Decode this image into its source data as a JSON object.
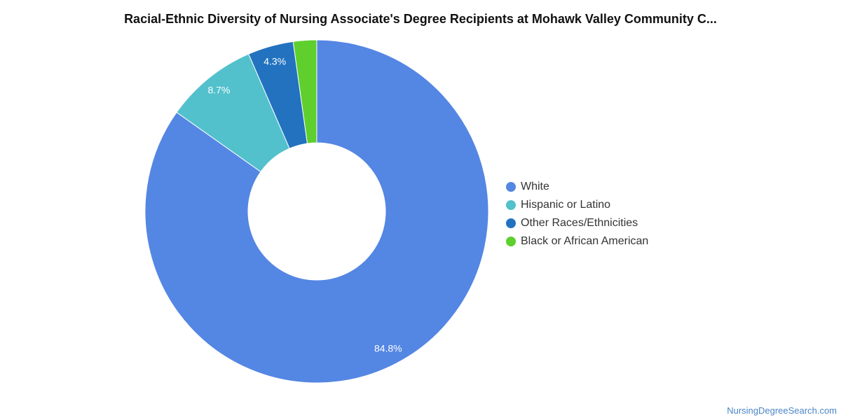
{
  "chart_data": {
    "type": "pie",
    "title": "Racial-Ethnic Diversity of Nursing Associate's Degree Recipients at Mohawk Valley Community C...",
    "donut": true,
    "categories": [
      "White",
      "Hispanic or Latino",
      "Other Races/Ethnicities",
      "Black or African American"
    ],
    "values": [
      84.8,
      8.7,
      4.3,
      2.2
    ],
    "data_labels": [
      "84.8%",
      "8.7%",
      "4.3%",
      ""
    ],
    "colors": [
      "#5486e3",
      "#52c1cc",
      "#2272c0",
      "#5ecf2c"
    ],
    "legend_position": "right"
  },
  "footer": {
    "source": "NursingDegreeSearch.com"
  }
}
